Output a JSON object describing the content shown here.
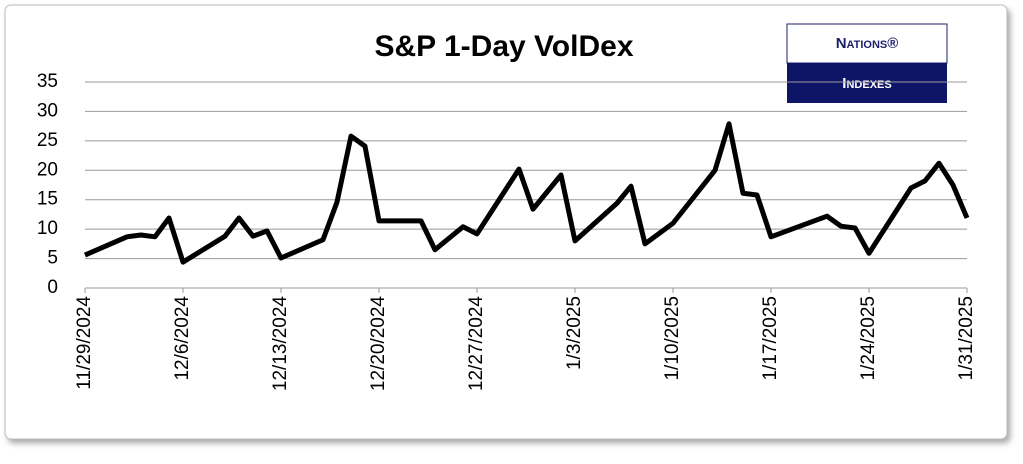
{
  "chart_data": {
    "type": "line",
    "title": "S&P 1-Day VolDex",
    "logo": {
      "top": "Nations®",
      "bottom": "Indexes"
    },
    "x": [
      "11/29/2024",
      "12/2/2024",
      "12/3/2024",
      "12/4/2024",
      "12/5/2024",
      "12/6/2024",
      "12/9/2024",
      "12/10/2024",
      "12/11/2024",
      "12/12/2024",
      "12/13/2024",
      "12/16/2024",
      "12/17/2024",
      "12/18/2024",
      "12/19/2024",
      "12/20/2024",
      "12/23/2024",
      "12/24/2024",
      "12/26/2024",
      "12/27/2024",
      "12/30/2024",
      "12/31/2024",
      "1/2/2025",
      "1/3/2025",
      "1/6/2025",
      "1/7/2025",
      "1/8/2025",
      "1/10/2025",
      "1/13/2025",
      "1/14/2025",
      "1/15/2025",
      "1/16/2025",
      "1/17/2025",
      "1/21/2025",
      "1/22/2025",
      "1/23/2025",
      "1/24/2025",
      "1/27/2025",
      "1/28/2025",
      "1/29/2025",
      "1/30/2025",
      "1/31/2025"
    ],
    "series": [
      {
        "name": "S&P 1-Day VolDex",
        "color": "#000000",
        "values": [
          5.6,
          8.7,
          9.0,
          8.7,
          11.9,
          4.4,
          8.8,
          11.9,
          8.8,
          9.7,
          5.1,
          8.2,
          14.6,
          25.8,
          24.1,
          11.4,
          11.4,
          6.5,
          10.4,
          9.2,
          20.2,
          13.4,
          19.2,
          8.0,
          14.4,
          17.3,
          7.5,
          11.0,
          20.0,
          27.9,
          16.1,
          15.8,
          8.7,
          12.2,
          10.5,
          10.2,
          5.9,
          17.0,
          18.2,
          21.2,
          17.5,
          11.9
        ]
      }
    ],
    "xticks": [
      "11/29/2024",
      "12/6/2024",
      "12/13/2024",
      "12/20/2024",
      "12/27/2024",
      "1/3/2025",
      "1/10/2025",
      "1/17/2025",
      "1/24/2025",
      "1/31/2025"
    ],
    "ylim": [
      0,
      35
    ],
    "yticks": [
      0,
      5,
      10,
      15,
      20,
      25,
      30,
      35
    ],
    "grid": true
  }
}
